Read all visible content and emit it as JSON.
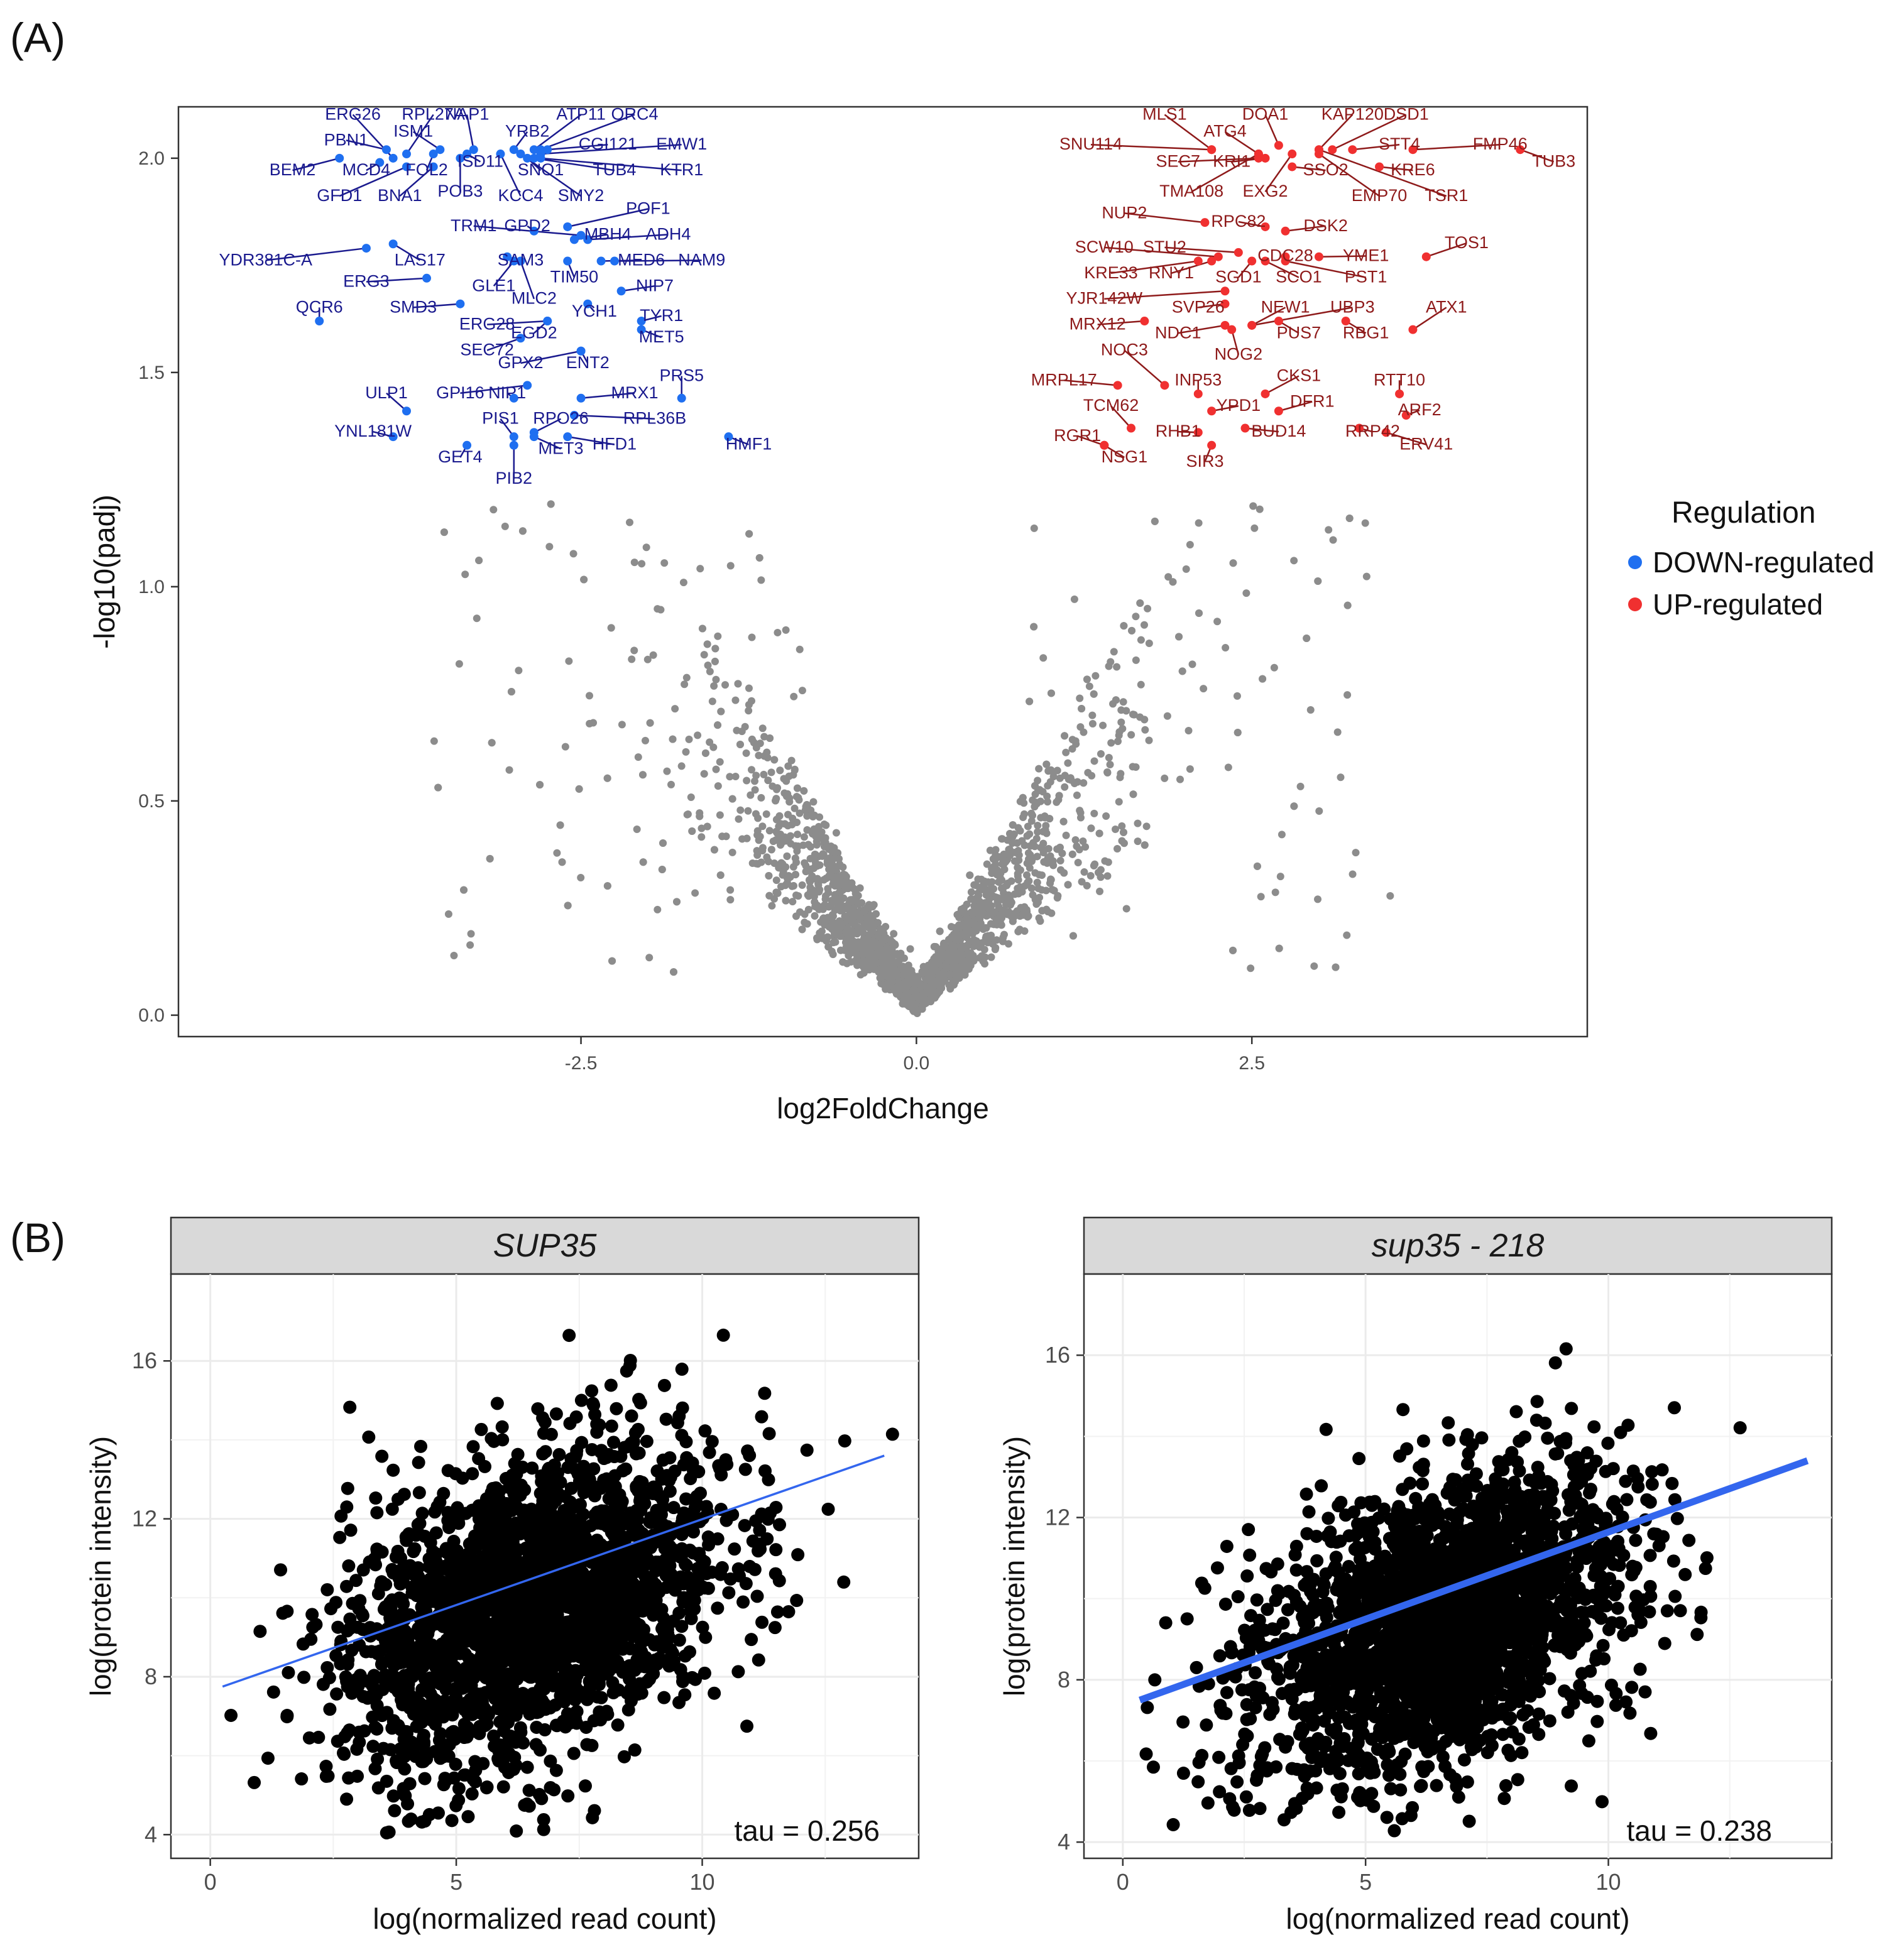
{
  "panel_labels": {
    "a": "(A)",
    "b": "(B)"
  },
  "colors": {
    "down": "#1F6FF0",
    "down_label": "#1A1A8E",
    "up": "#F03030",
    "up_label": "#8E1A1A",
    "ns": "#8C8C8C",
    "scatter_point": "#000000",
    "fit_line": "#3366EE",
    "strip_bg": "#D9D9D9",
    "grid": "#EBEBEB"
  },
  "chart_data": [
    {
      "type": "scatter",
      "id": "volcano",
      "title": "",
      "xlabel": "log2FoldChange",
      "ylabel": "-log10(padj)",
      "xlim": [
        -5.5,
        5.0
      ],
      "ylim": [
        -0.05,
        2.12
      ],
      "xticks": [
        -2.5,
        0.0,
        2.5
      ],
      "xtick_labels": [
        "-2.5",
        "0.0",
        "2.5"
      ],
      "yticks": [
        0.0,
        0.5,
        1.0,
        1.5,
        2.0
      ],
      "ytick_labels": [
        "0.0",
        "0.5",
        "1.0",
        "1.5",
        "2.0"
      ],
      "grid": false,
      "legend": {
        "title": "Regulation",
        "position": "right",
        "entries": [
          {
            "label": "DOWN-regulated",
            "color": "#1F6FF0"
          },
          {
            "label": "UP-regulated",
            "color": "#F03030"
          }
        ]
      },
      "down_points": [
        {
          "label": "ERG26",
          "x": -3.9,
          "y": 2.0,
          "lx": -4.2,
          "ly": 2.09
        },
        {
          "label": "RPL27A",
          "x": -3.8,
          "y": 2.01,
          "lx": -3.6,
          "ly": 2.09
        },
        {
          "label": "NAP1",
          "x": -3.3,
          "y": 2.02,
          "lx": -3.35,
          "ly": 2.09
        },
        {
          "label": "YRB2",
          "x": -3.0,
          "y": 2.02,
          "lx": -2.9,
          "ly": 2.05
        },
        {
          "label": "ATP11",
          "x": -2.85,
          "y": 2.02,
          "lx": -2.5,
          "ly": 2.09
        },
        {
          "label": "ORC4",
          "x": -2.8,
          "y": 2.02,
          "lx": -2.1,
          "ly": 2.09
        },
        {
          "label": "PBN1",
          "x": -3.95,
          "y": 2.02,
          "lx": -4.25,
          "ly": 2.03
        },
        {
          "label": "ISM1",
          "x": -3.55,
          "y": 2.02,
          "lx": -3.75,
          "ly": 2.05
        },
        {
          "label": "CGI121",
          "x": -2.75,
          "y": 2.02,
          "lx": -2.3,
          "ly": 2.02
        },
        {
          "label": "EMW1",
          "x": -2.8,
          "y": 2.01,
          "lx": -1.75,
          "ly": 2.02
        },
        {
          "label": "BEM2",
          "x": -4.3,
          "y": 2.0,
          "lx": -4.65,
          "ly": 1.96
        },
        {
          "label": "MCD4",
          "x": -4.0,
          "y": 1.99,
          "lx": -4.1,
          "ly": 1.96
        },
        {
          "label": "FOL2",
          "x": -3.6,
          "y": 2.01,
          "lx": -3.65,
          "ly": 1.96
        },
        {
          "label": "ISD11",
          "x": -3.35,
          "y": 2.01,
          "lx": -3.25,
          "ly": 1.98
        },
        {
          "label": "SNO1",
          "x": -2.9,
          "y": 2.0,
          "lx": -2.8,
          "ly": 1.96
        },
        {
          "label": "TUB4",
          "x": -2.85,
          "y": 2.0,
          "lx": -2.25,
          "ly": 1.96
        },
        {
          "label": "KTR1",
          "x": -2.8,
          "y": 2.0,
          "lx": -1.75,
          "ly": 1.96
        },
        {
          "label": "GFD1",
          "x": -3.8,
          "y": 1.98,
          "lx": -4.3,
          "ly": 1.9
        },
        {
          "label": "BNA1",
          "x": -3.6,
          "y": 1.98,
          "lx": -3.85,
          "ly": 1.9
        },
        {
          "label": "POB3",
          "x": -3.4,
          "y": 2.0,
          "lx": -3.4,
          "ly": 1.91
        },
        {
          "label": "KCC4",
          "x": -3.1,
          "y": 2.01,
          "lx": -2.95,
          "ly": 1.9
        },
        {
          "label": "SMY2",
          "x": -2.95,
          "y": 2.01,
          "lx": -2.5,
          "ly": 1.9
        },
        {
          "label": "POF1",
          "x": -2.6,
          "y": 1.84,
          "lx": -2.0,
          "ly": 1.87
        },
        {
          "label": "TRM1",
          "x": -2.5,
          "y": 1.82,
          "lx": -3.3,
          "ly": 1.83
        },
        {
          "label": "GPD2",
          "x": -2.85,
          "y": 1.83,
          "lx": -2.9,
          "ly": 1.83
        },
        {
          "label": "MBH4",
          "x": -2.55,
          "y": 1.81,
          "lx": -2.3,
          "ly": 1.81
        },
        {
          "label": "ADH4",
          "x": -2.45,
          "y": 1.81,
          "lx": -1.85,
          "ly": 1.81
        },
        {
          "label": "YDR381C-A",
          "x": -4.1,
          "y": 1.79,
          "lx": -4.85,
          "ly": 1.75
        },
        {
          "label": "LAS17",
          "x": -3.9,
          "y": 1.8,
          "lx": -3.7,
          "ly": 1.75
        },
        {
          "label": "SAM3",
          "x": -3.05,
          "y": 1.77,
          "lx": -2.95,
          "ly": 1.75
        },
        {
          "label": "MED6",
          "x": -2.35,
          "y": 1.76,
          "lx": -2.05,
          "ly": 1.75
        },
        {
          "label": "NAM9",
          "x": -2.25,
          "y": 1.76,
          "lx": -1.6,
          "ly": 1.75
        },
        {
          "label": "TIM50",
          "x": -2.6,
          "y": 1.76,
          "lx": -2.55,
          "ly": 1.71
        },
        {
          "label": "ERG3",
          "x": -3.65,
          "y": 1.72,
          "lx": -4.1,
          "ly": 1.7
        },
        {
          "label": "GLE1",
          "x": -3.0,
          "y": 1.76,
          "lx": -3.15,
          "ly": 1.69
        },
        {
          "label": "NIP7",
          "x": -2.2,
          "y": 1.69,
          "lx": -1.95,
          "ly": 1.69
        },
        {
          "label": "MLC2",
          "x": -2.95,
          "y": 1.76,
          "lx": -2.85,
          "ly": 1.66
        },
        {
          "label": "SMD3",
          "x": -3.4,
          "y": 1.66,
          "lx": -3.75,
          "ly": 1.64
        },
        {
          "label": "YCH1",
          "x": -2.45,
          "y": 1.66,
          "lx": -2.4,
          "ly": 1.63
        },
        {
          "label": "TYR1",
          "x": -2.05,
          "y": 1.62,
          "lx": -1.9,
          "ly": 1.62
        },
        {
          "label": "QCR6",
          "x": -4.45,
          "y": 1.62,
          "lx": -4.45,
          "ly": 1.64
        },
        {
          "label": "ERG28",
          "x": -2.75,
          "y": 1.62,
          "lx": -3.2,
          "ly": 1.6
        },
        {
          "label": "EGD2",
          "x": -2.75,
          "y": 1.62,
          "lx": -2.85,
          "ly": 1.58
        },
        {
          "label": "MET5",
          "x": -2.05,
          "y": 1.6,
          "lx": -1.9,
          "ly": 1.57
        },
        {
          "label": "SEC72",
          "x": -2.95,
          "y": 1.58,
          "lx": -3.2,
          "ly": 1.54
        },
        {
          "label": "GPX2",
          "x": -2.5,
          "y": 1.55,
          "lx": -2.95,
          "ly": 1.51
        },
        {
          "label": "ENT2",
          "x": -2.5,
          "y": 1.55,
          "lx": -2.45,
          "ly": 1.51
        },
        {
          "label": "PRS5",
          "x": -1.75,
          "y": 1.44,
          "lx": -1.75,
          "ly": 1.48
        },
        {
          "label": "ULP1",
          "x": -3.8,
          "y": 1.41,
          "lx": -3.95,
          "ly": 1.44
        },
        {
          "label": "GPI16",
          "x": -2.9,
          "y": 1.47,
          "lx": -3.4,
          "ly": 1.44
        },
        {
          "label": "NIP1",
          "x": -3.0,
          "y": 1.44,
          "lx": -3.05,
          "ly": 1.44
        },
        {
          "label": "MRX1",
          "x": -2.5,
          "y": 1.44,
          "lx": -2.1,
          "ly": 1.44
        },
        {
          "label": "RPL36B",
          "x": -2.55,
          "y": 1.4,
          "lx": -1.95,
          "ly": 1.38
        },
        {
          "label": "PIS1",
          "x": -3.0,
          "y": 1.35,
          "lx": -3.1,
          "ly": 1.38
        },
        {
          "label": "RPO26",
          "x": -2.85,
          "y": 1.36,
          "lx": -2.65,
          "ly": 1.38
        },
        {
          "label": "YNL181W",
          "x": -3.9,
          "y": 1.35,
          "lx": -4.05,
          "ly": 1.35
        },
        {
          "label": "HFD1",
          "x": -2.6,
          "y": 1.35,
          "lx": -2.25,
          "ly": 1.32
        },
        {
          "label": "HMF1",
          "x": -1.4,
          "y": 1.35,
          "lx": -1.25,
          "ly": 1.32
        },
        {
          "label": "MET3",
          "x": -2.85,
          "y": 1.35,
          "lx": -2.65,
          "ly": 1.31
        },
        {
          "label": "GET4",
          "x": -3.35,
          "y": 1.33,
          "lx": -3.4,
          "ly": 1.29
        },
        {
          "label": "PIB2",
          "x": -3.0,
          "y": 1.33,
          "lx": -3.0,
          "ly": 1.24
        }
      ],
      "up_points": [
        {
          "label": "MLS1",
          "x": 2.2,
          "y": 2.02,
          "lx": 1.85,
          "ly": 2.09
        },
        {
          "label": "DOA1",
          "x": 2.7,
          "y": 2.03,
          "lx": 2.6,
          "ly": 2.09
        },
        {
          "label": "KAP120",
          "x": 3.0,
          "y": 2.02,
          "lx": 3.25,
          "ly": 2.09
        },
        {
          "label": "DSD1",
          "x": 3.1,
          "y": 2.02,
          "lx": 3.65,
          "ly": 2.09
        },
        {
          "label": "SNU114",
          "x": 2.2,
          "y": 2.02,
          "lx": 1.3,
          "ly": 2.02
        },
        {
          "label": "ATG4",
          "x": 2.55,
          "y": 2.01,
          "lx": 2.3,
          "ly": 2.05
        },
        {
          "label": "STT4",
          "x": 3.25,
          "y": 2.02,
          "lx": 3.6,
          "ly": 2.02
        },
        {
          "label": "FMP46",
          "x": 3.7,
          "y": 2.02,
          "lx": 4.35,
          "ly": 2.02
        },
        {
          "label": "TUB3",
          "x": 4.5,
          "y": 2.02,
          "lx": 4.75,
          "ly": 1.98
        },
        {
          "label": "SEC7",
          "x": 2.55,
          "y": 2.0,
          "lx": 1.95,
          "ly": 1.98
        },
        {
          "label": "KRI1",
          "x": 2.6,
          "y": 2.0,
          "lx": 2.35,
          "ly": 1.98
        },
        {
          "label": "SSO2",
          "x": 2.8,
          "y": 1.98,
          "lx": 3.05,
          "ly": 1.96
        },
        {
          "label": "KRE6",
          "x": 3.45,
          "y": 1.98,
          "lx": 3.7,
          "ly": 1.96
        },
        {
          "label": "TMA108",
          "x": 2.55,
          "y": 2.01,
          "lx": 2.05,
          "ly": 1.91
        },
        {
          "label": "EXG2",
          "x": 2.8,
          "y": 2.01,
          "lx": 2.6,
          "ly": 1.91
        },
        {
          "label": "EMP70",
          "x": 3.0,
          "y": 2.01,
          "lx": 3.45,
          "ly": 1.9
        },
        {
          "label": "TSR1",
          "x": 3.0,
          "y": 2.02,
          "lx": 3.95,
          "ly": 1.9
        },
        {
          "label": "NUP2",
          "x": 2.15,
          "y": 1.85,
          "lx": 1.55,
          "ly": 1.86
        },
        {
          "label": "RPC82",
          "x": 2.6,
          "y": 1.84,
          "lx": 2.4,
          "ly": 1.84
        },
        {
          "label": "DSK2",
          "x": 2.75,
          "y": 1.83,
          "lx": 3.05,
          "ly": 1.83
        },
        {
          "label": "TOS1",
          "x": 3.8,
          "y": 1.77,
          "lx": 4.1,
          "ly": 1.79
        },
        {
          "label": "SCW10",
          "x": 2.25,
          "y": 1.77,
          "lx": 1.4,
          "ly": 1.78
        },
        {
          "label": "STU2",
          "x": 2.4,
          "y": 1.78,
          "lx": 1.85,
          "ly": 1.78
        },
        {
          "label": "CDC28",
          "x": 2.75,
          "y": 1.77,
          "lx": 2.75,
          "ly": 1.76
        },
        {
          "label": "YME1",
          "x": 3.0,
          "y": 1.77,
          "lx": 3.35,
          "ly": 1.76
        },
        {
          "label": "KRE33",
          "x": 2.1,
          "y": 1.76,
          "lx": 1.45,
          "ly": 1.72
        },
        {
          "label": "RNY1",
          "x": 2.2,
          "y": 1.76,
          "lx": 1.9,
          "ly": 1.72
        },
        {
          "label": "SGD1",
          "x": 2.5,
          "y": 1.76,
          "lx": 2.4,
          "ly": 1.71
        },
        {
          "label": "SCO1",
          "x": 2.6,
          "y": 1.76,
          "lx": 2.85,
          "ly": 1.71
        },
        {
          "label": "PST1",
          "x": 2.75,
          "y": 1.76,
          "lx": 3.35,
          "ly": 1.71
        },
        {
          "label": "YJR142W",
          "x": 2.3,
          "y": 1.69,
          "lx": 1.4,
          "ly": 1.66
        },
        {
          "label": "SVP26",
          "x": 2.3,
          "y": 1.66,
          "lx": 2.1,
          "ly": 1.64
        },
        {
          "label": "NEW1",
          "x": 2.5,
          "y": 1.61,
          "lx": 2.75,
          "ly": 1.64
        },
        {
          "label": "UBP3",
          "x": 2.5,
          "y": 1.61,
          "lx": 3.25,
          "ly": 1.64
        },
        {
          "label": "ATX1",
          "x": 3.7,
          "y": 1.6,
          "lx": 3.95,
          "ly": 1.64
        },
        {
          "label": "MRX12",
          "x": 1.7,
          "y": 1.62,
          "lx": 1.35,
          "ly": 1.6
        },
        {
          "label": "NDC1",
          "x": 2.3,
          "y": 1.61,
          "lx": 1.95,
          "ly": 1.58
        },
        {
          "label": "PUS7",
          "x": 2.7,
          "y": 1.62,
          "lx": 2.85,
          "ly": 1.58
        },
        {
          "label": "RBG1",
          "x": 3.2,
          "y": 1.62,
          "lx": 3.35,
          "ly": 1.58
        },
        {
          "label": "NOG2",
          "x": 2.35,
          "y": 1.6,
          "lx": 2.4,
          "ly": 1.53
        },
        {
          "label": "NOC3",
          "x": 1.85,
          "y": 1.47,
          "lx": 1.55,
          "ly": 1.54
        },
        {
          "label": "MRPL17",
          "x": 1.5,
          "y": 1.47,
          "lx": 1.1,
          "ly": 1.47
        },
        {
          "label": "INP53",
          "x": 2.1,
          "y": 1.45,
          "lx": 2.1,
          "ly": 1.47
        },
        {
          "label": "CKS1",
          "x": 2.6,
          "y": 1.45,
          "lx": 2.85,
          "ly": 1.48
        },
        {
          "label": "RTT10",
          "x": 3.6,
          "y": 1.45,
          "lx": 3.6,
          "ly": 1.47
        },
        {
          "label": "TCM62",
          "x": 1.6,
          "y": 1.37,
          "lx": 1.45,
          "ly": 1.41
        },
        {
          "label": "YPD1",
          "x": 2.2,
          "y": 1.41,
          "lx": 2.4,
          "ly": 1.41
        },
        {
          "label": "DFR1",
          "x": 2.7,
          "y": 1.41,
          "lx": 2.95,
          "ly": 1.42
        },
        {
          "label": "ARF2",
          "x": 3.65,
          "y": 1.4,
          "lx": 3.75,
          "ly": 1.4
        },
        {
          "label": "RGR1",
          "x": 1.4,
          "y": 1.33,
          "lx": 1.2,
          "ly": 1.34
        },
        {
          "label": "RHB1",
          "x": 2.1,
          "y": 1.36,
          "lx": 1.95,
          "ly": 1.35
        },
        {
          "label": "BUD14",
          "x": 2.45,
          "y": 1.37,
          "lx": 2.7,
          "ly": 1.35
        },
        {
          "label": "RRP42",
          "x": 3.3,
          "y": 1.37,
          "lx": 3.4,
          "ly": 1.35
        },
        {
          "label": "ERV41",
          "x": 3.5,
          "y": 1.36,
          "lx": 3.8,
          "ly": 1.32
        },
        {
          "label": "NSG1",
          "x": 1.4,
          "y": 1.33,
          "lx": 1.55,
          "ly": 1.29
        },
        {
          "label": "SIR3",
          "x": 2.2,
          "y": 1.33,
          "lx": 2.15,
          "ly": 1.28
        }
      ],
      "ns_summary": "several thousand non-significant genes forming a V-shaped cloud centred at x=0, y=0 up to y~1.25"
    },
    {
      "type": "scatter",
      "id": "sup35",
      "facet_title": "SUP35",
      "xlabel": "log(normalized read count)",
      "ylabel": "log(protein intensity)",
      "xlim": [
        -0.8,
        14.4
      ],
      "ylim": [
        3.4,
        18.2
      ],
      "xticks": [
        0,
        5,
        10
      ],
      "xtick_labels": [
        "0",
        "5",
        "10"
      ],
      "yticks": [
        4,
        8,
        12,
        16
      ],
      "ytick_labels": [
        "4",
        "8",
        "12",
        "16"
      ],
      "grid": true,
      "fit_line": {
        "x": [
          0.25,
          13.7
        ],
        "y": [
          7.75,
          13.6
        ],
        "width": "thin"
      },
      "annotation": "tau = 0.256",
      "n_points_approx": 3000
    },
    {
      "type": "scatter",
      "id": "sup35-218",
      "facet_title": "sup35 - 218",
      "xlabel": "log(normalized read count)",
      "ylabel": "log(protein intensity)",
      "xlim": [
        -0.8,
        14.6
      ],
      "ylim": [
        3.6,
        18.0
      ],
      "xticks": [
        0,
        5,
        10
      ],
      "xtick_labels": [
        "0",
        "5",
        "10"
      ],
      "yticks": [
        4,
        8,
        12,
        16
      ],
      "ytick_labels": [
        "4",
        "8",
        "12",
        "16"
      ],
      "grid": true,
      "fit_line": {
        "x": [
          0.35,
          14.1
        ],
        "y": [
          7.5,
          13.4
        ],
        "width": "thick"
      },
      "annotation": "tau = 0.238",
      "n_points_approx": 3000
    }
  ]
}
